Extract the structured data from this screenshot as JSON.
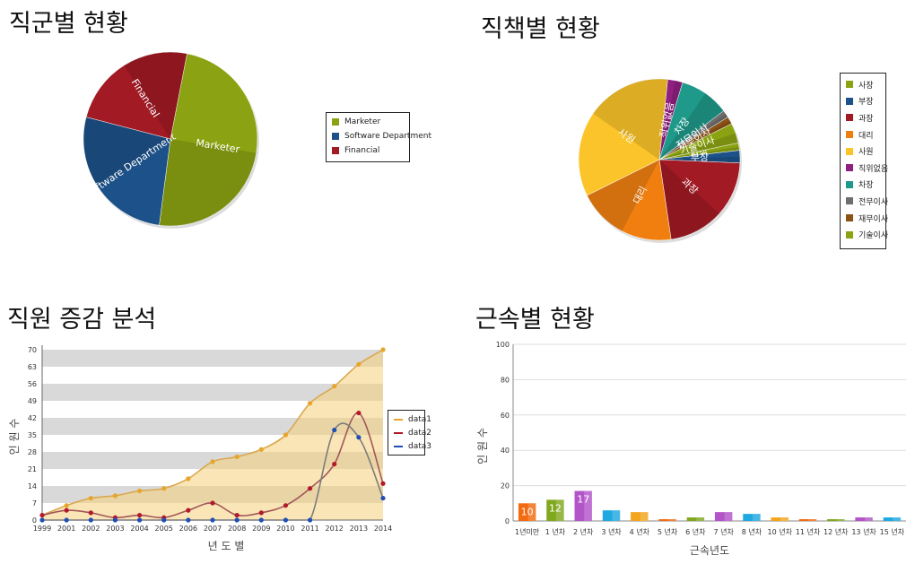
{
  "chart_data": [
    {
      "id": "job-group",
      "type": "pie",
      "title": "직군별 현황",
      "categories": [
        "Marketer",
        "Software Department",
        "Financial"
      ],
      "values": [
        49,
        27,
        24
      ],
      "colors": [
        "#8ba312",
        "#1c5189",
        "#a11a24"
      ],
      "slice_labels": [
        "Marketer",
        "Software Department",
        "Financial"
      ],
      "legend_position": "right"
    },
    {
      "id": "position",
      "type": "pie",
      "title": "직책별 현황",
      "categories": [
        "사장",
        "부장",
        "과장",
        "대리",
        "사원",
        "직위없음",
        "차장",
        "전무이사",
        "재무이사",
        "기술이사"
      ],
      "values": [
        1.5,
        2.5,
        22,
        20,
        34,
        3,
        10,
        1.5,
        1.5,
        4
      ],
      "colors": [
        "#8ba312",
        "#1c5189",
        "#a11a24",
        "#f07f10",
        "#fbc42a",
        "#8f1f80",
        "#1f9989",
        "#6e6e6e",
        "#8c5317",
        "#8ba312"
      ],
      "slice_labels": [
        "사장",
        "부장",
        "과장",
        "대리",
        "사원",
        "직위없음",
        "차장",
        "전무이사",
        "재무이사",
        "기술이사"
      ],
      "legend_position": "right"
    },
    {
      "id": "staff-trend",
      "type": "area",
      "title": "직원 증감 분석",
      "xlabel": "년 도 별",
      "ylabel": "인 원 수",
      "x": [
        "1999",
        "2001",
        "2002",
        "2003",
        "2004",
        "2005",
        "2006",
        "2007",
        "2008",
        "2009",
        "2010",
        "2011",
        "2012",
        "2013",
        "2014"
      ],
      "yticks": [
        0,
        7,
        14,
        21,
        28,
        35,
        42,
        49,
        56,
        63,
        70
      ],
      "ylim": [
        0,
        70
      ],
      "series": [
        {
          "name": "data1",
          "color": "#e8a52c",
          "values": [
            2,
            6,
            9,
            10,
            12,
            13,
            17,
            24,
            26,
            29,
            35,
            48,
            55,
            64,
            70
          ]
        },
        {
          "name": "data2",
          "color": "#b2192b",
          "values": [
            2,
            4,
            3,
            1,
            2,
            1,
            4,
            7,
            2,
            3,
            6,
            13,
            23,
            44,
            15
          ]
        },
        {
          "name": "data3",
          "color": "#1f4fb4",
          "values": [
            0,
            0,
            0,
            0,
            0,
            0,
            0,
            0,
            0,
            0,
            0,
            0,
            37,
            34,
            9
          ]
        }
      ],
      "legend_position": "right"
    },
    {
      "id": "tenure",
      "type": "bar",
      "title": "근속별 현황",
      "xlabel": "근속년도",
      "ylabel": "인 원 수",
      "categories": [
        "1년미만",
        "1 년차",
        "2 년차",
        "3 년차",
        "4 년차",
        "5 년차",
        "6 년차",
        "7 년차",
        "8 년차",
        "10 년차",
        "11 년차",
        "12 년차",
        "13 년차",
        "15 년차"
      ],
      "values": [
        10,
        12,
        17,
        6,
        5,
        1,
        2,
        5,
        4,
        2,
        1,
        1,
        2,
        2
      ],
      "value_labels": [
        "10",
        "12",
        "17",
        "",
        "",
        "",
        "",
        "",
        "",
        "",
        "",
        "",
        "",
        ""
      ],
      "colors": [
        "#f36a10",
        "#80a81f",
        "#b355c8",
        "#1fa9e1",
        "#f3a51d",
        "#f36a10",
        "#80a81f",
        "#b355c8",
        "#1fa9e1",
        "#f3a51d",
        "#f36a10",
        "#80a81f",
        "#b355c8",
        "#1fa9e1"
      ],
      "yticks": [
        0,
        20,
        40,
        60,
        80,
        100
      ],
      "ylim": [
        0,
        100
      ]
    }
  ]
}
